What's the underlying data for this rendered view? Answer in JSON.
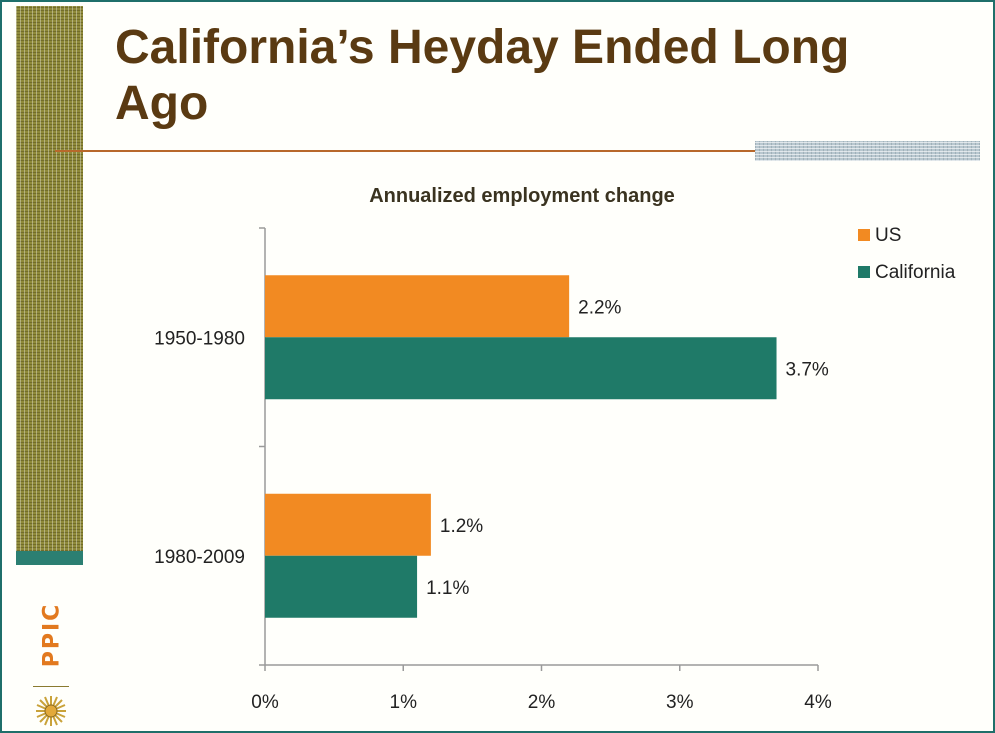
{
  "slide": {
    "title": "California’s Heyday Ended Long Ago",
    "logo_text": "PPIC"
  },
  "colors": {
    "us": "#f28a22",
    "california": "#1f7a68",
    "title": "#5a3a12",
    "rule": "#b8682b"
  },
  "icons": [
    "ppic-logo",
    "sun-icon"
  ],
  "chart_data": {
    "type": "bar",
    "orientation": "horizontal",
    "title": "Annualized employment change",
    "xlabel": "",
    "ylabel": "",
    "categories": [
      "1950-1980",
      "1980-2009"
    ],
    "series": [
      {
        "name": "US",
        "values": [
          2.2,
          1.2
        ],
        "labels": [
          "2.2%",
          "1.2%"
        ]
      },
      {
        "name": "California",
        "values": [
          3.7,
          1.1
        ],
        "labels": [
          "3.7%",
          "1.1%"
        ]
      }
    ],
    "xlim": [
      0,
      4
    ],
    "xticks": [
      "0%",
      "1%",
      "2%",
      "3%",
      "4%"
    ],
    "grid": false,
    "legend": "top-right"
  }
}
